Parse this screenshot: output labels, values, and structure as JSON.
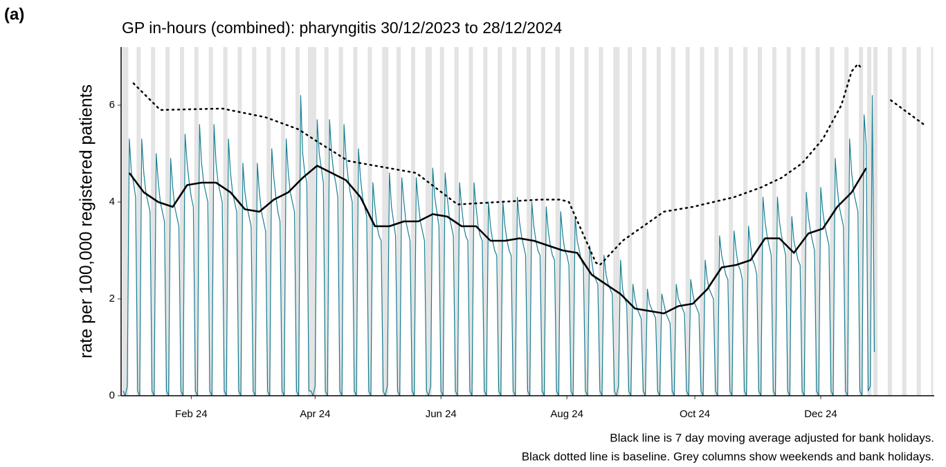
{
  "panel_label": "(a)",
  "chart_data": {
    "type": "line",
    "title": "GP in-hours (combined): pharyngitis 30/12/2023 to 28/12/2024",
    "y_label": "rate per 100,000 registered patients",
    "notes": [
      "Black line is 7 day moving average adjusted for bank holidays.",
      "Black dotted line is baseline. Grey columns show weekends and bank holidays."
    ],
    "xlim": [
      -1,
      393
    ],
    "ylim": [
      0,
      7.2
    ],
    "xticks": [
      {
        "value": 33,
        "label": "Feb 24"
      },
      {
        "value": 93,
        "label": "Apr 24"
      },
      {
        "value": 154,
        "label": "Jun 24"
      },
      {
        "value": 215,
        "label": "Aug 24"
      },
      {
        "value": 277,
        "label": "Oct 24"
      },
      {
        "value": 338,
        "label": "Dec 24"
      }
    ],
    "yticks": [
      0,
      2,
      4,
      6
    ],
    "series": [
      {
        "color": "#177e92",
        "style": "thin",
        "values": [
          0.1,
          0,
          0.2,
          5.3,
          4.6,
          4.4,
          4.1,
          0.1,
          0,
          5.3,
          4.6,
          4.2,
          4.0,
          3.8,
          0.1,
          0,
          5.0,
          4.4,
          4.0,
          3.8,
          3.6,
          0.1,
          0,
          4.9,
          4.3,
          3.9,
          3.7,
          3.5,
          0.1,
          0,
          5.4,
          4.8,
          4.4,
          4.1,
          3.9,
          0.1,
          0,
          5.6,
          4.8,
          4.4,
          4.2,
          4.0,
          0.1,
          0,
          5.6,
          4.8,
          4.4,
          4.2,
          4.0,
          0.1,
          0,
          5.3,
          4.6,
          4.2,
          4.0,
          3.8,
          0.1,
          0,
          4.8,
          4.2,
          3.9,
          3.7,
          3.5,
          0.1,
          0,
          4.8,
          4.2,
          3.8,
          3.6,
          3.4,
          0.1,
          0,
          5.1,
          4.5,
          4.1,
          3.8,
          3.6,
          0.1,
          0,
          5.3,
          4.6,
          4.2,
          4.0,
          3.8,
          0.1,
          0,
          6.2,
          5.0,
          4.6,
          4.4,
          0.1,
          0.1,
          0,
          0.2,
          5.7,
          5.0,
          4.7,
          4.4,
          0.1,
          0,
          5.7,
          5.0,
          4.6,
          4.4,
          4.1,
          0.1,
          0,
          5.6,
          4.9,
          4.5,
          4.2,
          4.0,
          0.1,
          0,
          5.1,
          4.5,
          4.1,
          3.9,
          3.7,
          0.1,
          0,
          4.4,
          3.9,
          3.5,
          3.3,
          3.2,
          0.1,
          0,
          0.2,
          4.6,
          3.9,
          3.6,
          3.3,
          0.1,
          0,
          4.5,
          4.0,
          3.6,
          3.4,
          3.2,
          0.1,
          0,
          4.5,
          4.0,
          3.6,
          3.4,
          3.2,
          0.1,
          0,
          0.2,
          4.7,
          4.1,
          3.8,
          3.5,
          0.1,
          0,
          4.6,
          4.1,
          3.7,
          3.5,
          3.3,
          0.1,
          0,
          4.4,
          3.9,
          3.5,
          3.3,
          3.2,
          0.1,
          0,
          4.4,
          3.9,
          3.5,
          3.3,
          3.2,
          0.1,
          0,
          4.0,
          3.5,
          3.2,
          3.0,
          2.9,
          0.1,
          0,
          4.0,
          3.5,
          3.2,
          3.0,
          2.9,
          0.1,
          0,
          4.1,
          3.6,
          3.3,
          3.1,
          2.9,
          0.1,
          0,
          4.0,
          3.5,
          3.2,
          3.0,
          2.9,
          0.1,
          0,
          3.9,
          3.4,
          3.1,
          2.9,
          2.8,
          0.1,
          0,
          3.8,
          3.3,
          3.0,
          2.9,
          2.7,
          0.1,
          0,
          3.7,
          3.2,
          3.0,
          2.8,
          2.7,
          0.1,
          0,
          3.1,
          2.8,
          2.5,
          2.4,
          2.3,
          0.1,
          0,
          2.9,
          2.5,
          2.3,
          2.2,
          2.1,
          0.1,
          0,
          0.2,
          2.8,
          2.2,
          2.0,
          1.9,
          0.1,
          0,
          2.3,
          2.0,
          1.8,
          1.7,
          1.6,
          0.1,
          0,
          2.2,
          1.9,
          1.8,
          1.7,
          1.6,
          0.1,
          0,
          2.1,
          1.9,
          1.7,
          1.6,
          1.5,
          0.1,
          0,
          2.3,
          2.0,
          1.9,
          1.8,
          1.7,
          0.1,
          0,
          2.4,
          2.1,
          1.9,
          1.8,
          1.7,
          0.1,
          0,
          2.8,
          2.4,
          2.2,
          2.1,
          2.0,
          0.1,
          0,
          3.3,
          2.9,
          2.7,
          2.5,
          2.4,
          0.1,
          0,
          3.4,
          3.0,
          2.7,
          2.6,
          2.4,
          0.1,
          0,
          3.5,
          3.1,
          2.8,
          2.7,
          2.5,
          0.1,
          0,
          4.1,
          3.6,
          3.3,
          3.1,
          2.9,
          0.1,
          0,
          4.1,
          3.6,
          3.3,
          3.1,
          2.9,
          0.1,
          0,
          3.7,
          3.2,
          3.0,
          2.8,
          2.7,
          0.1,
          0,
          4.2,
          3.7,
          3.4,
          3.2,
          3.0,
          0.1,
          0,
          4.3,
          3.8,
          3.5,
          3.3,
          3.1,
          0.1,
          0,
          4.9,
          4.3,
          3.9,
          3.7,
          3.5,
          0.1,
          0,
          5.3,
          4.6,
          4.2,
          4.0,
          3.8,
          0.1,
          0,
          5.8,
          5.2,
          0.1,
          0.2,
          6.2,
          0.9
        ]
      },
      {
        "color": "#000000",
        "style": "solid",
        "x": [
          3,
          10,
          17,
          24,
          31,
          38,
          45,
          52,
          59,
          66,
          73,
          80,
          87,
          94,
          101,
          108,
          115,
          122,
          129,
          136,
          143,
          150,
          157,
          164,
          171,
          178,
          185,
          192,
          199,
          206,
          213,
          220,
          227,
          234,
          241,
          248,
          255,
          262,
          269,
          276,
          283,
          290,
          297,
          304,
          311,
          318,
          325,
          332,
          339,
          346,
          353,
          360
        ],
        "values": [
          4.6,
          4.2,
          4.0,
          3.9,
          4.35,
          4.4,
          4.4,
          4.2,
          3.85,
          3.8,
          4.05,
          4.2,
          4.5,
          4.75,
          4.6,
          4.45,
          4.1,
          3.5,
          3.5,
          3.6,
          3.6,
          3.75,
          3.7,
          3.5,
          3.5,
          3.2,
          3.2,
          3.25,
          3.2,
          3.1,
          3.0,
          2.95,
          2.5,
          2.3,
          2.1,
          1.8,
          1.75,
          1.7,
          1.85,
          1.9,
          2.2,
          2.65,
          2.7,
          2.8,
          3.25,
          3.25,
          2.95,
          3.35,
          3.45,
          3.9,
          4.2,
          4.7
        ]
      },
      {
        "color": "#000000",
        "style": "dotted",
        "x": [
          5,
          18,
          48,
          69,
          85,
          94,
          109,
          122,
          142,
          162,
          182,
          202,
          212,
          216,
          229,
          231,
          242,
          262,
          276,
          296,
          309,
          319,
          329,
          339,
          348,
          353,
          356,
          358,
          365,
          372,
          388
        ],
        "values": [
          6.45,
          5.9,
          5.93,
          5.75,
          5.5,
          5.25,
          4.85,
          4.75,
          4.6,
          3.95,
          4.0,
          4.05,
          4.05,
          4.0,
          2.75,
          2.7,
          3.2,
          3.8,
          3.9,
          4.1,
          4.3,
          4.5,
          4.8,
          5.3,
          6.0,
          6.7,
          6.85,
          6.75,
          null,
          6.1,
          5.6
        ]
      }
    ]
  }
}
